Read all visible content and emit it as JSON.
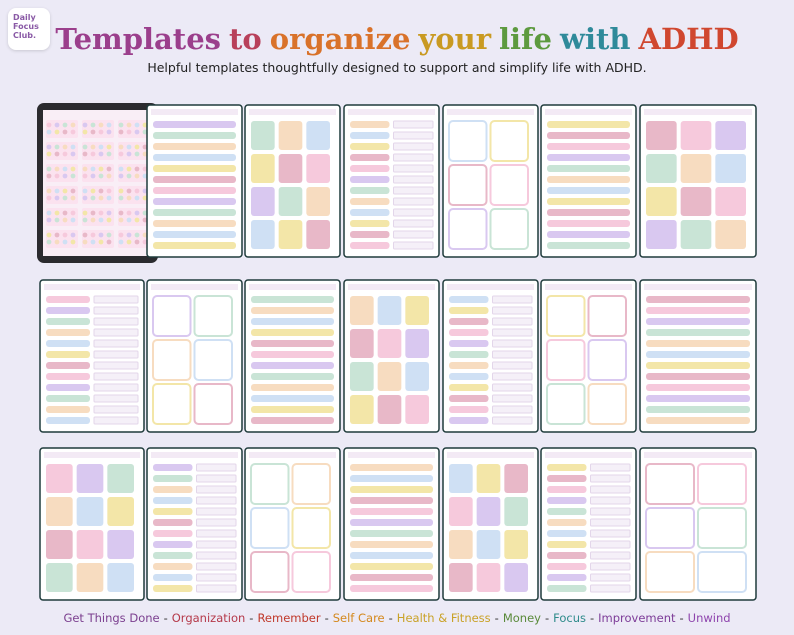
{
  "logo": {
    "lines": [
      "Daily",
      "Focus",
      "Club."
    ]
  },
  "title": {
    "words": [
      {
        "text": "Templates",
        "color": "#9b3f8c"
      },
      {
        "text": "to",
        "color": "#b8405a"
      },
      {
        "text": "organize",
        "color": "#d9722a"
      },
      {
        "text": "your",
        "color": "#c99a22"
      },
      {
        "text": "life",
        "color": "#5d9a3f"
      },
      {
        "text": "with",
        "color": "#2f8a9a"
      },
      {
        "text": "ADHD",
        "color": "#d0472f"
      }
    ]
  },
  "subtitle": "Helpful templates thoughtfully designed to support and simplify life with ADHD.",
  "footer": {
    "separator": "-",
    "items": [
      {
        "text": "Get Things Done",
        "color": "#7b3f8f"
      },
      {
        "text": "Organization",
        "color": "#b5394a"
      },
      {
        "text": "Remember",
        "color": "#c0392b"
      },
      {
        "text": "Self Care",
        "color": "#d4881c"
      },
      {
        "text": "Health & Fitness",
        "color": "#c9a227"
      },
      {
        "text": "Money",
        "color": "#5a8a3a"
      },
      {
        "text": "Focus",
        "color": "#2e8b8b"
      },
      {
        "text": "Improvement",
        "color": "#7d3c98"
      },
      {
        "text": "Unwind",
        "color": "#8e44ad"
      }
    ]
  }
}
